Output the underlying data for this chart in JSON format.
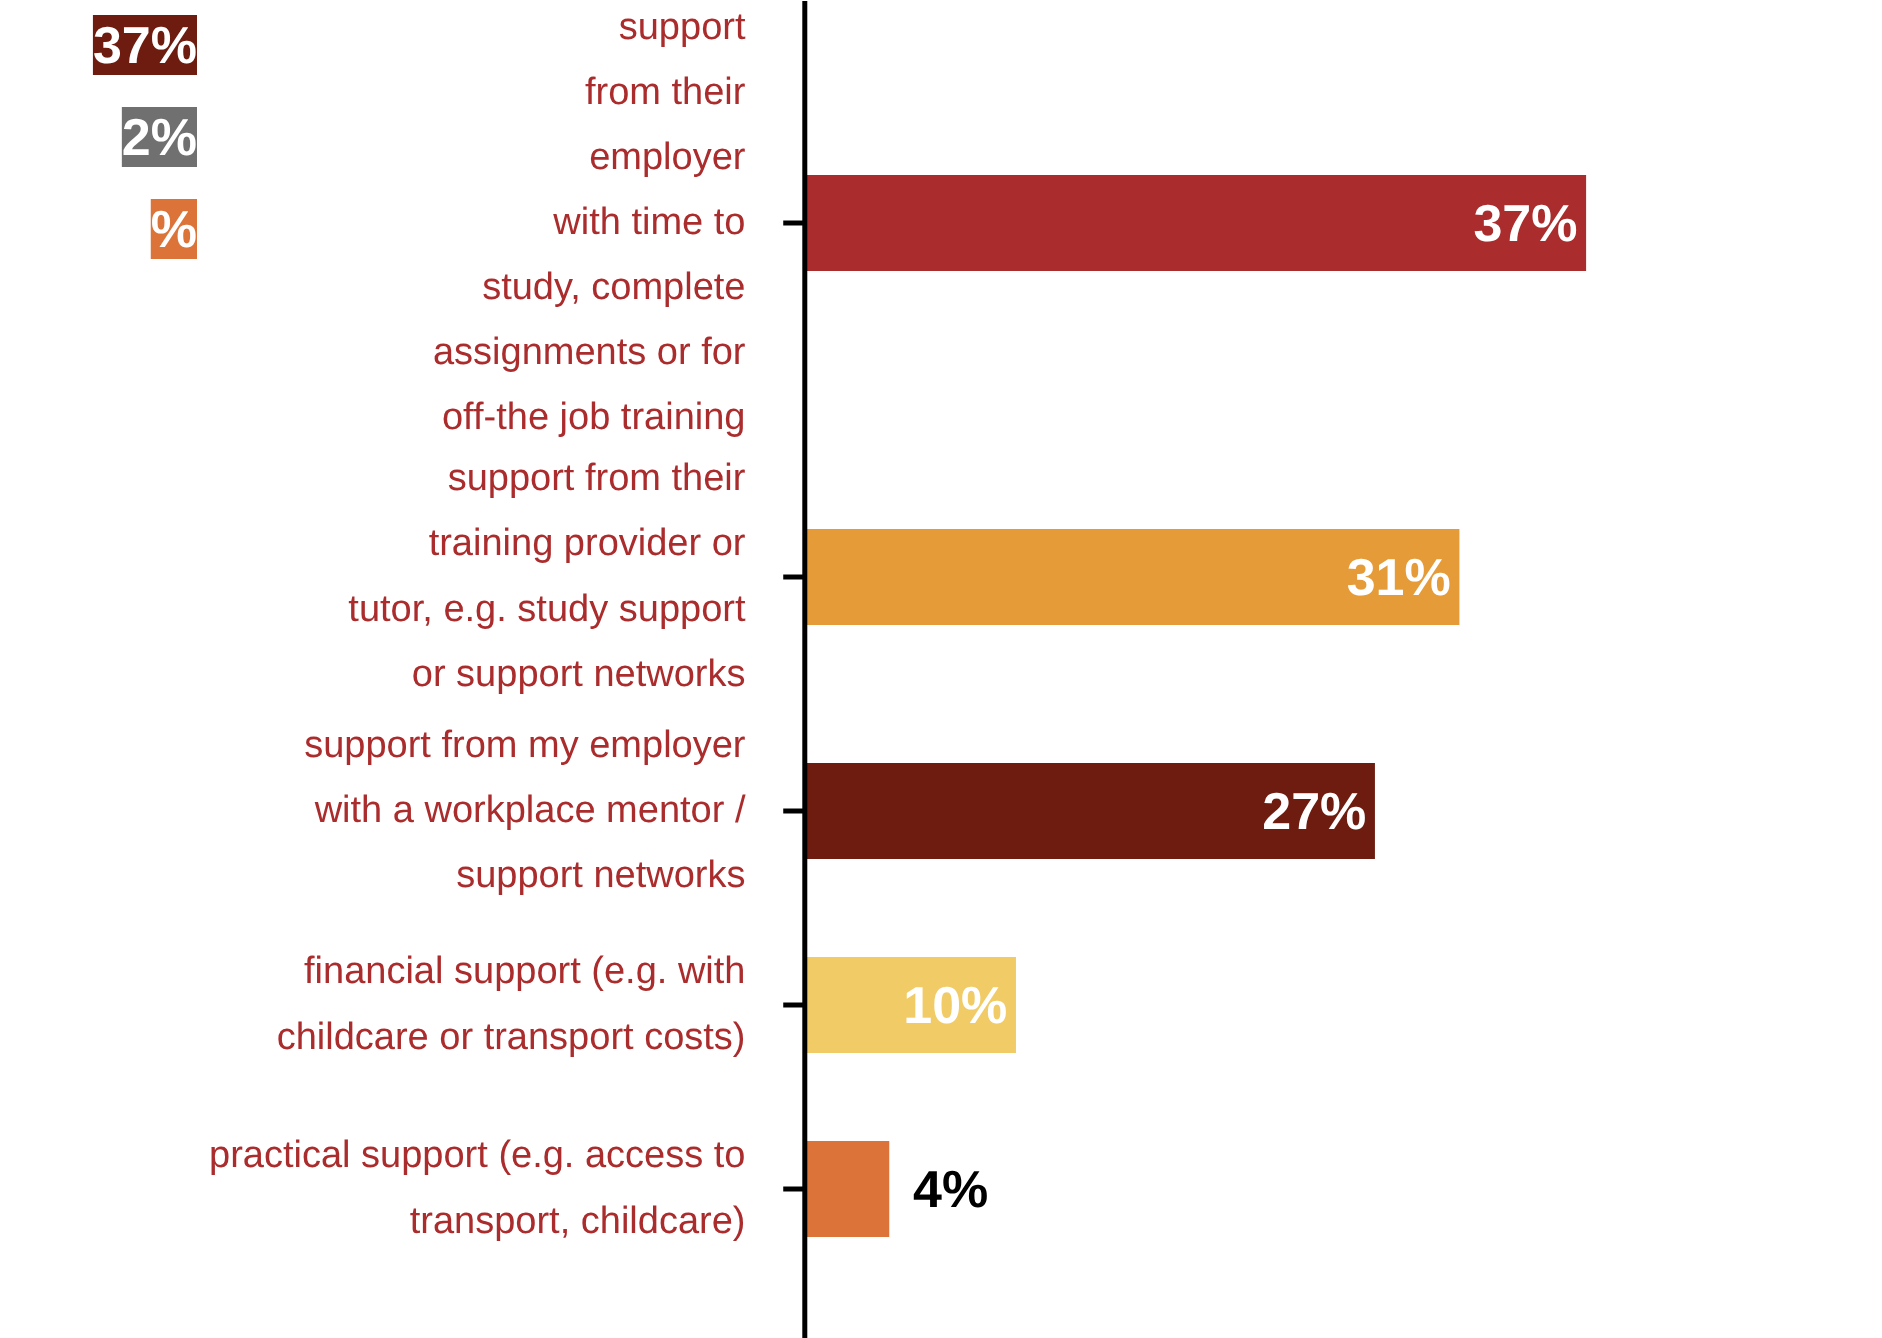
{
  "chart_data": [
    {
      "type": "other",
      "annotations": [
        "37%",
        "2%",
        "%"
      ]
    },
    {
      "type": "bar",
      "orientation": "horizontal",
      "value_labels": [
        "37%",
        "31%",
        "27%",
        "10%",
        "4%"
      ],
      "categories": [
        "support\nfrom their\nemployer\nwith time to\nstudy, complete\nassignments or for\noff-the job training",
        "support from their\ntraining provider or\ntutor, e.g. study support\nor support networks",
        "support from my employer\nwith a workplace mentor /\nsupport networks",
        "financial support (e.g. with\nchildcare or transport costs)",
        "practical support (e.g. access to\ntransport, childcare)"
      ],
      "values": [
        37,
        31,
        27,
        10,
        4
      ],
      "colors": [
        "#aa2c2c",
        "#e49b38",
        "#6e1c0f",
        "#f0cb66",
        "#dc7338"
      ]
    }
  ]
}
